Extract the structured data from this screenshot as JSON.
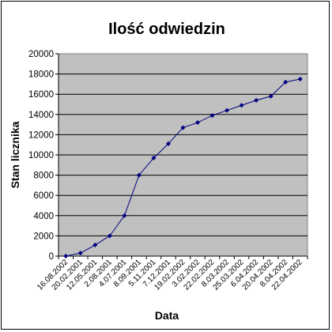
{
  "chart_data": {
    "type": "line",
    "title": "Ilość odwiedzin",
    "xlabel": "Data",
    "ylabel": "Stan licznika",
    "ylim": [
      0,
      20000
    ],
    "yticks": [
      0,
      2000,
      4000,
      6000,
      8000,
      10000,
      12000,
      14000,
      16000,
      18000,
      20000
    ],
    "grid": true,
    "legend": "none",
    "colors": {
      "plot_background": "#c0c0c0",
      "line": "#000080",
      "marker": "#000080",
      "gridline": "#000000"
    },
    "categories": [
      "16.08.2002",
      "20.02.2001",
      "12.05.2001",
      "2.08.2001",
      "4.07.2001",
      "8.09.2001",
      "5.11.2001",
      "7.12.2001",
      "19.02.2002",
      "3.02.2002",
      "22.02.2002",
      "8.03.2002",
      "25.03.2002",
      "6.04.2002",
      "20.04.2002",
      "8.04.2002",
      "22.04.2002"
    ],
    "series": [
      {
        "values": [
          0,
          300,
          1100,
          2000,
          4000,
          8000,
          9700,
          11100,
          12700,
          13200,
          13900,
          14400,
          14900,
          15400,
          15800,
          17200,
          17500
        ]
      }
    ]
  }
}
